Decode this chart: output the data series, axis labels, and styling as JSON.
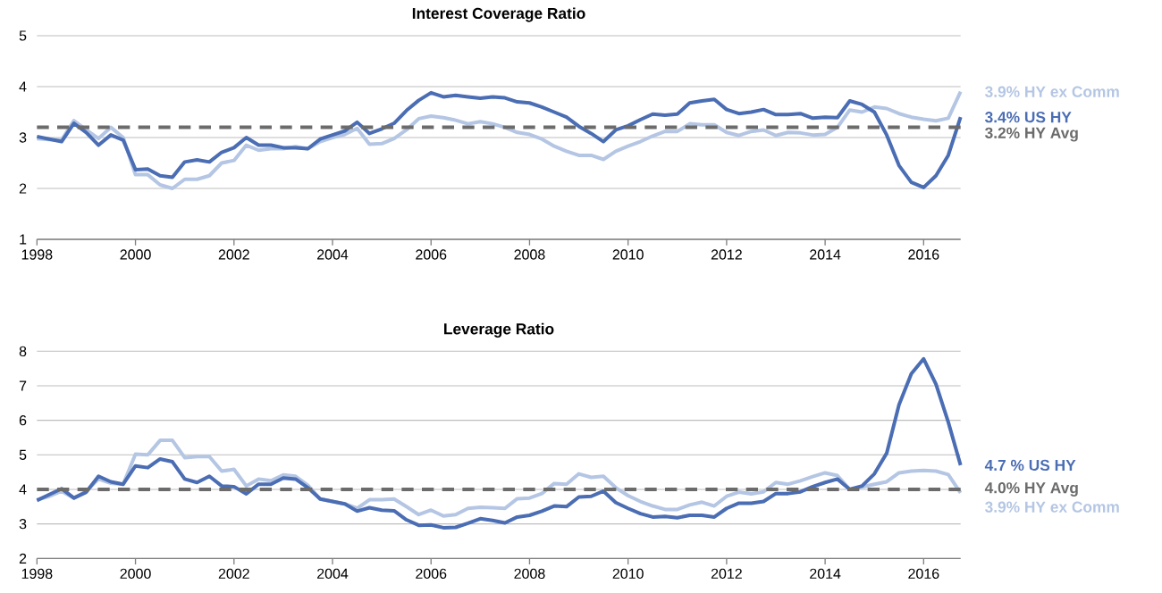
{
  "chart_data": [
    {
      "type": "line",
      "title": "Interest Coverage Ratio",
      "x": [
        1998,
        1998.25,
        1998.5,
        1998.75,
        1999,
        1999.25,
        1999.5,
        1999.75,
        2000,
        2000.25,
        2000.5,
        2000.75,
        2001,
        2001.25,
        2001.5,
        2001.75,
        2002,
        2002.25,
        2002.5,
        2002.75,
        2003,
        2003.25,
        2003.5,
        2003.75,
        2004,
        2004.25,
        2004.5,
        2004.75,
        2005,
        2005.25,
        2005.5,
        2005.75,
        2006,
        2006.25,
        2006.5,
        2006.75,
        2007,
        2007.25,
        2007.5,
        2007.75,
        2008,
        2008.25,
        2008.5,
        2008.75,
        2009,
        2009.25,
        2009.5,
        2009.75,
        2010,
        2010.25,
        2010.5,
        2010.75,
        2011,
        2011.25,
        2011.5,
        2011.75,
        2012,
        2012.25,
        2012.5,
        2012.75,
        2013,
        2013.25,
        2013.5,
        2013.75,
        2014,
        2014.25,
        2014.5,
        2014.75,
        2015,
        2015.25,
        2015.5,
        2015.75,
        2016,
        2016.25,
        2016.5,
        2016.75
      ],
      "series": [
        {
          "name": "3.9% HY ex Comm",
          "color": "#b4c6e4",
          "values": [
            2.98,
            2.96,
            2.95,
            3.33,
            3.15,
            2.98,
            3.2,
            3.0,
            2.27,
            2.27,
            2.07,
            2.0,
            2.18,
            2.18,
            2.25,
            2.5,
            2.55,
            2.85,
            2.75,
            2.78,
            2.78,
            2.82,
            2.78,
            2.92,
            3.0,
            3.06,
            3.18,
            2.87,
            2.88,
            2.98,
            3.15,
            3.37,
            3.42,
            3.39,
            3.34,
            3.27,
            3.31,
            3.27,
            3.2,
            3.1,
            3.06,
            2.97,
            2.83,
            2.73,
            2.65,
            2.65,
            2.57,
            2.73,
            2.83,
            2.92,
            3.03,
            3.12,
            3.12,
            3.27,
            3.25,
            3.25,
            3.1,
            3.04,
            3.12,
            3.15,
            3.04,
            3.1,
            3.09,
            3.05,
            3.06,
            3.2,
            3.54,
            3.5,
            3.6,
            3.57,
            3.47,
            3.4,
            3.36,
            3.33,
            3.38,
            3.9
          ]
        },
        {
          "name": "3.4% US HY",
          "color": "#4a6db3",
          "values": [
            3.02,
            2.97,
            2.92,
            3.28,
            3.1,
            2.85,
            3.05,
            2.95,
            2.37,
            2.38,
            2.25,
            2.22,
            2.52,
            2.56,
            2.52,
            2.71,
            2.8,
            3.0,
            2.85,
            2.85,
            2.8,
            2.8,
            2.78,
            2.97,
            3.05,
            3.13,
            3.3,
            3.08,
            3.17,
            3.28,
            3.53,
            3.73,
            3.88,
            3.8,
            3.83,
            3.8,
            3.77,
            3.8,
            3.78,
            3.7,
            3.68,
            3.6,
            3.5,
            3.4,
            3.22,
            3.08,
            2.92,
            3.15,
            3.23,
            3.35,
            3.46,
            3.44,
            3.46,
            3.68,
            3.72,
            3.75,
            3.55,
            3.47,
            3.5,
            3.55,
            3.45,
            3.45,
            3.47,
            3.38,
            3.4,
            3.39,
            3.72,
            3.65,
            3.5,
            3.05,
            2.45,
            2.12,
            2.02,
            2.25,
            2.65,
            3.4
          ]
        }
      ],
      "ref_lines": [
        {
          "axis": "y",
          "value": 3.2,
          "label": "3.2% HY Avg",
          "color": "#6b6b6b",
          "line_style": "dashed"
        }
      ],
      "xlim": [
        1998,
        2016.75
      ],
      "xticks": [
        1998,
        2000,
        2002,
        2004,
        2006,
        2008,
        2010,
        2012,
        2014,
        2016
      ],
      "ylim": [
        1,
        5
      ],
      "yticks": [
        1,
        2,
        3,
        4,
        5
      ],
      "grid": "y"
    },
    {
      "type": "line",
      "title": "Leverage Ratio",
      "x": [
        1998,
        1998.25,
        1998.5,
        1998.75,
        1999,
        1999.25,
        1999.5,
        1999.75,
        2000,
        2000.25,
        2000.5,
        2000.75,
        2001,
        2001.25,
        2001.5,
        2001.75,
        2002,
        2002.25,
        2002.5,
        2002.75,
        2003,
        2003.25,
        2003.5,
        2003.75,
        2004,
        2004.25,
        2004.5,
        2004.75,
        2005,
        2005.25,
        2005.5,
        2005.75,
        2006,
        2006.25,
        2006.5,
        2006.75,
        2007,
        2007.25,
        2007.5,
        2007.75,
        2008,
        2008.25,
        2008.5,
        2008.75,
        2009,
        2009.25,
        2009.5,
        2009.75,
        2010,
        2010.25,
        2010.5,
        2010.75,
        2011,
        2011.25,
        2011.5,
        2011.75,
        2012,
        2012.25,
        2012.5,
        2012.75,
        2013,
        2013.25,
        2013.5,
        2013.75,
        2014,
        2014.25,
        2014.5,
        2014.75,
        2015,
        2015.25,
        2015.5,
        2015.75,
        2016,
        2016.25,
        2016.5,
        2016.75
      ],
      "series": [
        {
          "name": "3.9% HY ex Comm",
          "color": "#b4c6e4",
          "values": [
            3.7,
            3.8,
            3.95,
            3.75,
            3.95,
            4.3,
            4.18,
            4.15,
            5.02,
            5.0,
            5.42,
            5.42,
            4.92,
            4.95,
            4.95,
            4.53,
            4.58,
            4.1,
            4.3,
            4.25,
            4.42,
            4.38,
            4.12,
            3.72,
            3.65,
            3.58,
            3.45,
            3.7,
            3.7,
            3.72,
            3.5,
            3.27,
            3.4,
            3.23,
            3.27,
            3.45,
            3.48,
            3.47,
            3.45,
            3.73,
            3.75,
            3.88,
            4.17,
            4.15,
            4.45,
            4.35,
            4.38,
            4.05,
            3.82,
            3.65,
            3.52,
            3.42,
            3.42,
            3.55,
            3.63,
            3.52,
            3.8,
            3.92,
            3.87,
            3.93,
            4.2,
            4.15,
            4.25,
            4.37,
            4.48,
            4.4,
            4.0,
            4.07,
            4.15,
            4.22,
            4.48,
            4.53,
            4.55,
            4.53,
            4.43,
            3.9
          ]
        },
        {
          "name": "4.7 % US HY",
          "color": "#4a6db3",
          "values": [
            3.68,
            3.85,
            4.02,
            3.75,
            3.92,
            4.38,
            4.22,
            4.15,
            4.68,
            4.63,
            4.88,
            4.8,
            4.3,
            4.2,
            4.38,
            4.1,
            4.08,
            3.87,
            4.15,
            4.15,
            4.33,
            4.3,
            4.05,
            3.72,
            3.65,
            3.58,
            3.37,
            3.47,
            3.4,
            3.38,
            3.12,
            2.96,
            2.97,
            2.89,
            2.9,
            3.02,
            3.15,
            3.1,
            3.03,
            3.2,
            3.25,
            3.37,
            3.52,
            3.5,
            3.78,
            3.8,
            3.95,
            3.62,
            3.45,
            3.3,
            3.2,
            3.22,
            3.18,
            3.25,
            3.25,
            3.2,
            3.45,
            3.6,
            3.6,
            3.65,
            3.88,
            3.88,
            3.93,
            4.08,
            4.2,
            4.3,
            4.0,
            4.1,
            4.45,
            5.05,
            6.45,
            7.35,
            7.78,
            7.05,
            5.95,
            4.7
          ]
        }
      ],
      "ref_lines": [
        {
          "axis": "y",
          "value": 4.0,
          "label": "4.0% HY Avg",
          "color": "#6b6b6b",
          "line_style": "dashed"
        }
      ],
      "xlim": [
        1998,
        2016.75
      ],
      "xticks": [
        1998,
        2000,
        2002,
        2004,
        2006,
        2008,
        2010,
        2012,
        2014,
        2016
      ],
      "ylim": [
        2,
        8
      ],
      "yticks": [
        2,
        3,
        4,
        5,
        6,
        7,
        8
      ],
      "grid": "y"
    }
  ]
}
